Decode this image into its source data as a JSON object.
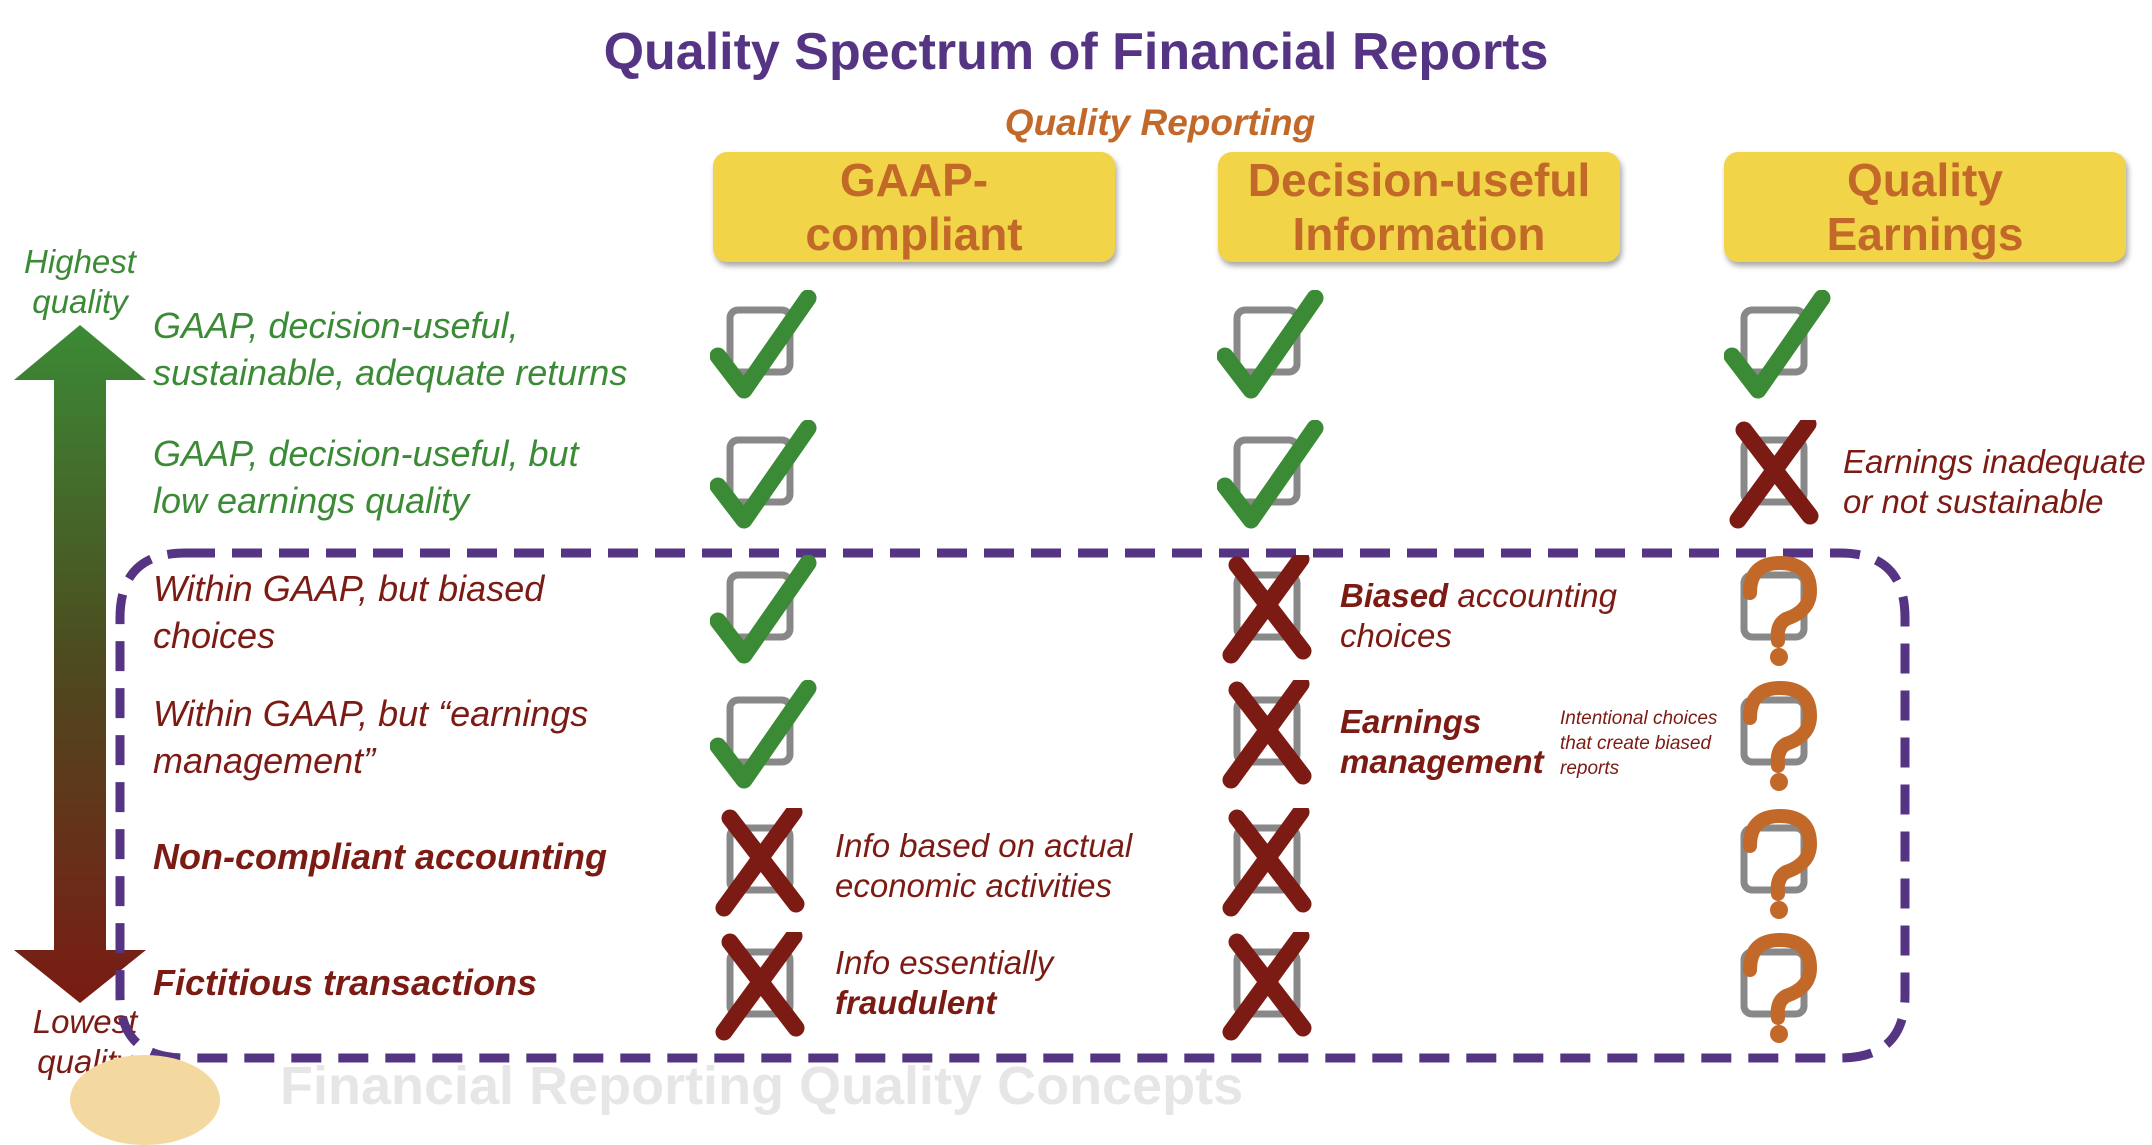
{
  "title": "Quality Spectrum of Financial Reports",
  "subtitle": "Quality Reporting",
  "columns": [
    {
      "label_line1": "GAAP-",
      "label_line2": "compliant"
    },
    {
      "label_line1": "Decision-useful",
      "label_line2": "Information"
    },
    {
      "label_line1": "Quality",
      "label_line2": "Earnings"
    }
  ],
  "axis": {
    "top_line1": "Highest",
    "top_line2": "quality",
    "bottom_line1": "Lowest",
    "bottom_line2": "quality"
  },
  "rows": [
    {
      "line1": "GAAP, decision-useful,",
      "line2": "sustainable, adequate returns",
      "marks": [
        "check",
        "check",
        "check"
      ]
    },
    {
      "line1": "GAAP, decision-useful, but",
      "line2": "low earnings quality",
      "marks": [
        "check",
        "check",
        "cross"
      ]
    },
    {
      "line1": "Within GAAP, but biased",
      "line2": "choices",
      "marks": [
        "check",
        "cross",
        "question"
      ]
    },
    {
      "line1": "Within GAAP, but “earnings",
      "line2": "management”",
      "marks": [
        "check",
        "cross",
        "question"
      ]
    },
    {
      "line1": "Non-compliant accounting",
      "line2": "",
      "marks": [
        "cross",
        "cross",
        "question"
      ]
    },
    {
      "line1": "Fictitious transactions",
      "line2": "",
      "marks": [
        "cross",
        "cross",
        "question"
      ]
    }
  ],
  "notes": {
    "earnings_inadequate_line1": "Earnings inadequate",
    "earnings_inadequate_line2": "or not sustainable",
    "biased_bold": "Biased",
    "biased_rest": " accounting",
    "biased_line2": "choices",
    "earnings_mgmt_line1": "Earnings",
    "earnings_mgmt_line2": "management",
    "intentional_line1": "Intentional choices",
    "intentional_line2": "that create biased",
    "intentional_line3": "reports",
    "actual_line1": "Info based on actual",
    "actual_line2": "economic activities",
    "fraud_line1": "Info essentially",
    "fraud_line2": "fraudulent"
  },
  "watermark": "Financial Reporting Quality Concepts",
  "colors": {
    "title": "#553583",
    "accent": "#c2692a",
    "box": "#f1d448",
    "green": "#3b8a35",
    "red": "#7b1b14",
    "dash": "#553583"
  }
}
